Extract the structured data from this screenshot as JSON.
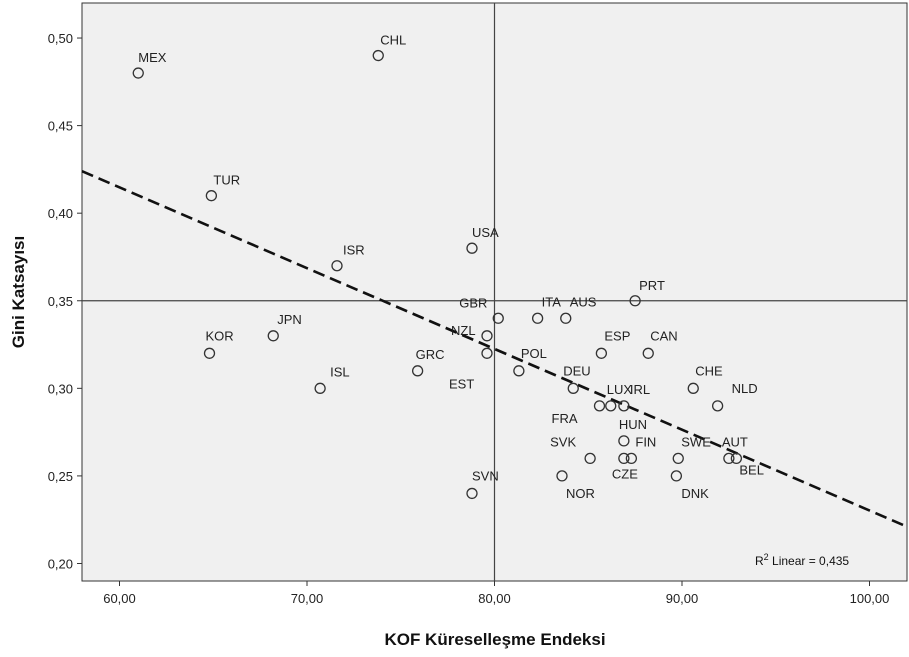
{
  "chart_data": {
    "type": "scatter",
    "xlabel": "KOF Küreselleşme Endeksi",
    "ylabel": "Gini Katsayısı",
    "xlim": [
      58,
      102
    ],
    "ylim": [
      0.19,
      0.52
    ],
    "x_ticks": [
      60,
      70,
      80,
      90,
      100
    ],
    "x_tick_labels": [
      "60,00",
      "70,00",
      "80,00",
      "90,00",
      "100,00"
    ],
    "y_ticks": [
      0.2,
      0.25,
      0.3,
      0.35,
      0.4,
      0.45,
      0.5
    ],
    "y_tick_labels": [
      "0,20",
      "0,25",
      "0,30",
      "0,35",
      "0,40",
      "0,45",
      "0,50"
    ],
    "reference_lines": {
      "x": 80,
      "y": 0.35
    },
    "fit_line": {
      "type": "linear",
      "r2_prefix": "R",
      "r2_sup": "2",
      "r2_text": " Linear = 0,435",
      "x": [
        58,
        102
      ],
      "y": [
        0.424,
        0.221
      ]
    },
    "points": [
      {
        "label": "MEX",
        "x": 61.0,
        "y": 0.48
      },
      {
        "label": "CHL",
        "x": 73.8,
        "y": 0.49
      },
      {
        "label": "TUR",
        "x": 64.9,
        "y": 0.41
      },
      {
        "label": "ISR",
        "x": 71.6,
        "y": 0.37
      },
      {
        "label": "USA",
        "x": 78.8,
        "y": 0.38
      },
      {
        "label": "PRT",
        "x": 87.5,
        "y": 0.35
      },
      {
        "label": "GBR",
        "x": 80.2,
        "y": 0.34
      },
      {
        "label": "ITA",
        "x": 82.3,
        "y": 0.34
      },
      {
        "label": "AUS",
        "x": 83.8,
        "y": 0.34
      },
      {
        "label": "KOR",
        "x": 64.8,
        "y": 0.32
      },
      {
        "label": "JPN",
        "x": 68.2,
        "y": 0.33
      },
      {
        "label": "NZL",
        "x": 79.6,
        "y": 0.33
      },
      {
        "label": "EST",
        "x": 79.6,
        "y": 0.32
      },
      {
        "label": "ESP",
        "x": 85.7,
        "y": 0.32
      },
      {
        "label": "CAN",
        "x": 88.2,
        "y": 0.32
      },
      {
        "label": "ISL",
        "x": 70.7,
        "y": 0.3
      },
      {
        "label": "GRC",
        "x": 75.9,
        "y": 0.31
      },
      {
        "label": "POL",
        "x": 81.3,
        "y": 0.31
      },
      {
        "label": "DEU",
        "x": 84.2,
        "y": 0.3
      },
      {
        "label": "CHE",
        "x": 90.6,
        "y": 0.3
      },
      {
        "label": "FRA",
        "x": 85.6,
        "y": 0.29
      },
      {
        "label": "LUX",
        "x": 86.2,
        "y": 0.29
      },
      {
        "label": "IRL",
        "x": 86.9,
        "y": 0.29
      },
      {
        "label": "NLD",
        "x": 91.9,
        "y": 0.29
      },
      {
        "label": "SVK",
        "x": 85.1,
        "y": 0.26
      },
      {
        "label": "HUN",
        "x": 86.9,
        "y": 0.27
      },
      {
        "label": "CZE",
        "x": 86.9,
        "y": 0.26
      },
      {
        "label": "FIN",
        "x": 87.3,
        "y": 0.26
      },
      {
        "label": "SWE",
        "x": 89.8,
        "y": 0.26
      },
      {
        "label": "AUT",
        "x": 92.5,
        "y": 0.26
      },
      {
        "label": "BEL",
        "x": 92.9,
        "y": 0.26
      },
      {
        "label": "SVN",
        "x": 78.8,
        "y": 0.24
      },
      {
        "label": "NOR",
        "x": 83.6,
        "y": 0.25
      },
      {
        "label": "DNK",
        "x": 89.7,
        "y": 0.25
      }
    ]
  }
}
